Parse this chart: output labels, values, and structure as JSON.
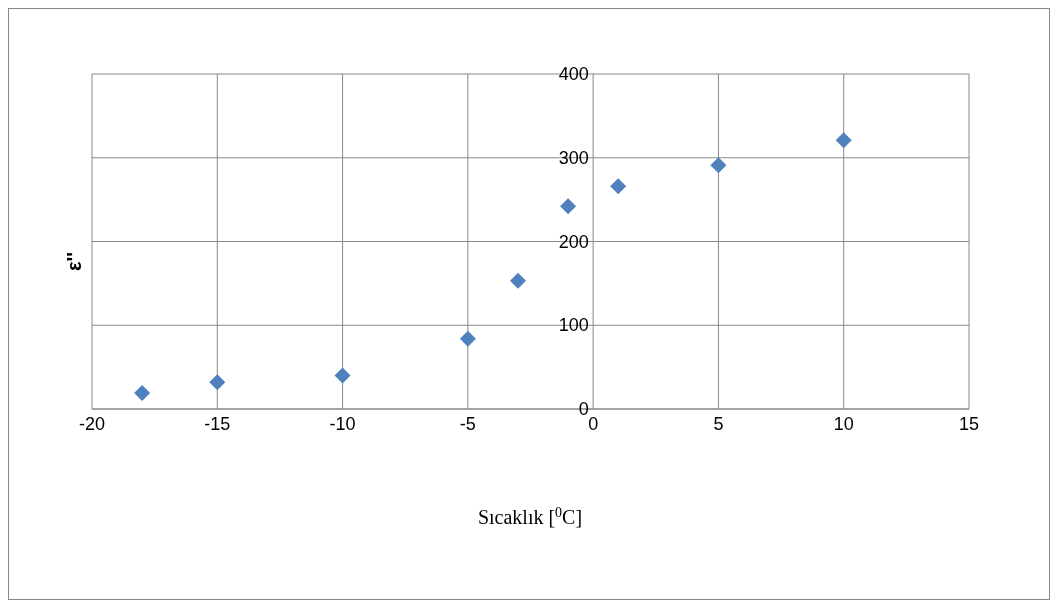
{
  "chart_data": {
    "type": "scatter",
    "xlabel": "Sıcaklık [$^{0}$C]",
    "ylabel": "ε''",
    "x": [
      -18,
      -15,
      -10,
      -5,
      -3,
      -1,
      1,
      5,
      10
    ],
    "series": [
      {
        "color": "#4f81bd",
        "values": [
          19,
          32,
          40,
          84,
          153,
          242,
          266,
          291,
          321
        ]
      }
    ],
    "xlim": [
      -20,
      15
    ],
    "xticks": [
      -20,
      -15,
      -10,
      -5,
      0,
      5,
      10,
      15
    ],
    "ylim": [
      0,
      400
    ],
    "yticks": [
      0,
      100,
      200,
      300,
      400
    ],
    "grid": true,
    "legend": false,
    "marker": "diamond"
  }
}
